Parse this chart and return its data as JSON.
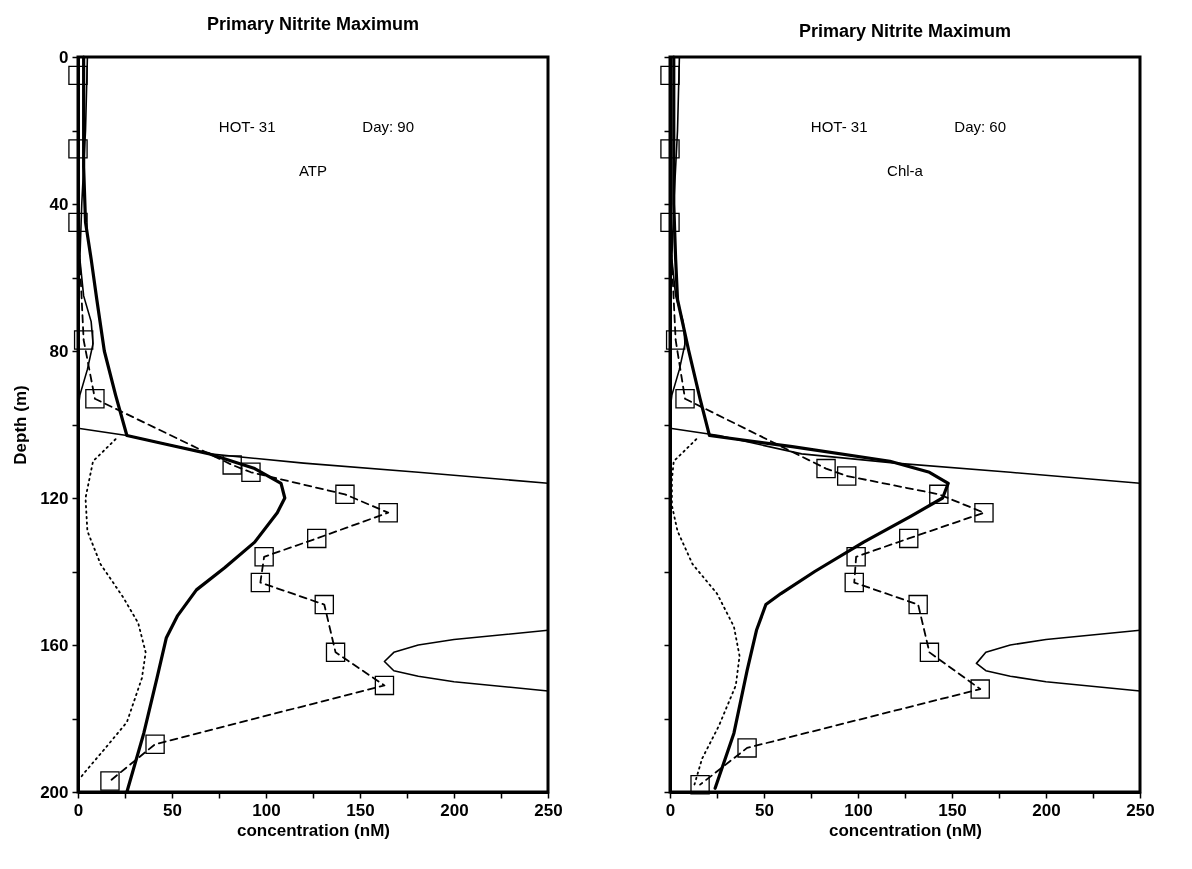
{
  "chart_data": [
    {
      "type": "line",
      "title": "Primary Nitrite Maximum",
      "xlabel": "concentration (nM)",
      "ylabel": "Depth (m)",
      "annotations": [
        "HOT- 31",
        "Day: 90",
        "ATP"
      ],
      "xlim": [
        0,
        250
      ],
      "xticks": [
        0,
        {
          "value": 25,
          "label": null
        },
        50,
        {
          "value": 75,
          "label": null
        },
        100,
        {
          "value": 125,
          "label": null
        },
        150,
        {
          "value": 175,
          "label": null
        },
        200,
        {
          "value": 225,
          "label": null
        },
        250
      ],
      "ylim": [
        200,
        0
      ],
      "yticks": [
        0,
        {
          "value": 20,
          "label": null
        },
        40,
        {
          "value": 60,
          "label": null
        },
        80,
        {
          "value": 100,
          "label": null
        },
        120,
        {
          "value": 140,
          "label": null
        },
        160,
        {
          "value": 180,
          "label": null
        },
        200
      ],
      "series": [
        {
          "color": "#000000",
          "line_style": "solid",
          "marker": "none",
          "x": [
            3,
            3,
            4,
            7,
            10,
            14,
            20,
            26,
            48,
            70,
            94,
            108,
            110,
            106,
            94,
            78,
            63,
            53,
            47,
            42,
            35,
            26
          ],
          "values": [
            0,
            30,
            45,
            55,
            66,
            80,
            92,
            103,
            105.5,
            108,
            112,
            116,
            120,
            124,
            132,
            139,
            145,
            152,
            158,
            169,
            184,
            200
          ]
        },
        {
          "color": "#000000",
          "line_style": "solid",
          "marker": "none",
          "x": [
            5,
            4,
            2,
            1,
            3,
            7,
            8,
            5,
            1,
            0,
            0,
            26,
            70,
            120,
            181,
            250,
            null,
            250,
            200,
            181,
            168,
            163,
            168,
            181,
            200,
            250
          ],
          "values": [
            0,
            20,
            40,
            55,
            65,
            72,
            78,
            85,
            92,
            96,
            101,
            103,
            108,
            110.5,
            113,
            116,
            null,
            156,
            158.5,
            160,
            162,
            164.5,
            167,
            168.5,
            170,
            172.5
          ]
        },
        {
          "color": "#000000",
          "line_style": "dotted",
          "marker": "none",
          "x": [
            20,
            8,
            4,
            5,
            12,
            24,
            32,
            36,
            34,
            26,
            13,
            3,
            0
          ],
          "values": [
            104,
            110,
            120,
            129,
            138,
            147,
            154,
            162,
            169,
            181,
            189,
            195,
            197
          ]
        },
        {
          "color": "#000000",
          "line_style": "dashed",
          "marker": "square",
          "x": [
            0,
            0,
            0,
            3,
            9,
            82,
            92,
            142,
            165,
            127,
            99,
            97,
            131,
            137,
            163,
            41,
            17
          ],
          "values": [
            5,
            25,
            45,
            77,
            93,
            111,
            113,
            119,
            124,
            131,
            136,
            143,
            149,
            162,
            171,
            187,
            197
          ]
        }
      ]
    },
    {
      "type": "line",
      "title": "Primary Nitrite Maximum",
      "xlabel": "concentration (nM)",
      "tick_labels": "x",
      "annotations": [
        "HOT- 31",
        "Day: 60",
        "Chl-a"
      ],
      "xlim": [
        0,
        250
      ],
      "xticks": [
        0,
        {
          "value": 25,
          "label": null
        },
        50,
        {
          "value": 75,
          "label": null
        },
        100,
        {
          "value": 125,
          "label": null
        },
        150,
        {
          "value": 175,
          "label": null
        },
        200,
        {
          "value": 225,
          "label": null
        },
        250
      ],
      "ylim": [
        200,
        0
      ],
      "yticks": [
        0,
        {
          "value": 20,
          "label": null
        },
        40,
        {
          "value": 60,
          "label": null
        },
        80,
        {
          "value": 100,
          "label": null
        },
        120,
        {
          "value": 140,
          "label": null
        },
        160,
        {
          "value": 180,
          "label": null
        },
        200
      ],
      "series": [
        {
          "color": "#000000",
          "line_style": "solid",
          "marker": "none",
          "x": [
            2,
            2,
            3,
            4,
            10,
            16,
            21,
            65,
            117,
            138,
            148,
            145,
            128,
            103,
            77,
            59,
            51,
            46,
            41,
            34,
            24
          ],
          "values": [
            0,
            40,
            55,
            66,
            80,
            93,
            103,
            106,
            110,
            113,
            116,
            120,
            125,
            132,
            140,
            146,
            149,
            156,
            167,
            184,
            199
          ]
        },
        {
          "color": "#000000",
          "line_style": "solid",
          "marker": "none",
          "x": [
            5,
            4,
            2,
            1,
            3,
            7,
            8,
            5,
            1,
            0,
            0,
            26,
            70,
            120,
            181,
            250,
            null,
            250,
            200,
            181,
            168,
            163,
            168,
            181,
            200,
            250
          ],
          "values": [
            0,
            20,
            40,
            55,
            65,
            72,
            78,
            85,
            92,
            96,
            101,
            103,
            108,
            110.5,
            113,
            116,
            null,
            156,
            158.5,
            160,
            162,
            165,
            167,
            168.5,
            170,
            172.5
          ]
        },
        {
          "color": "#000000",
          "line_style": "dotted",
          "marker": "none",
          "x": [
            14,
            2,
            1,
            1,
            4,
            12,
            25,
            34,
            37,
            35,
            26,
            17,
            13
          ],
          "values": [
            104,
            110,
            115,
            122,
            129,
            138,
            146,
            155,
            163,
            171,
            182,
            191,
            198
          ]
        },
        {
          "color": "#000000",
          "line_style": "dashed",
          "marker": "square",
          "x": [
            0,
            0,
            0,
            3,
            8,
            83,
            94,
            143,
            167,
            127,
            99,
            98,
            132,
            138,
            165,
            41,
            16
          ],
          "values": [
            5,
            25,
            45,
            77,
            93,
            112,
            114,
            119,
            124,
            131,
            136,
            143,
            149,
            162,
            172,
            188,
            198
          ]
        }
      ]
    }
  ]
}
